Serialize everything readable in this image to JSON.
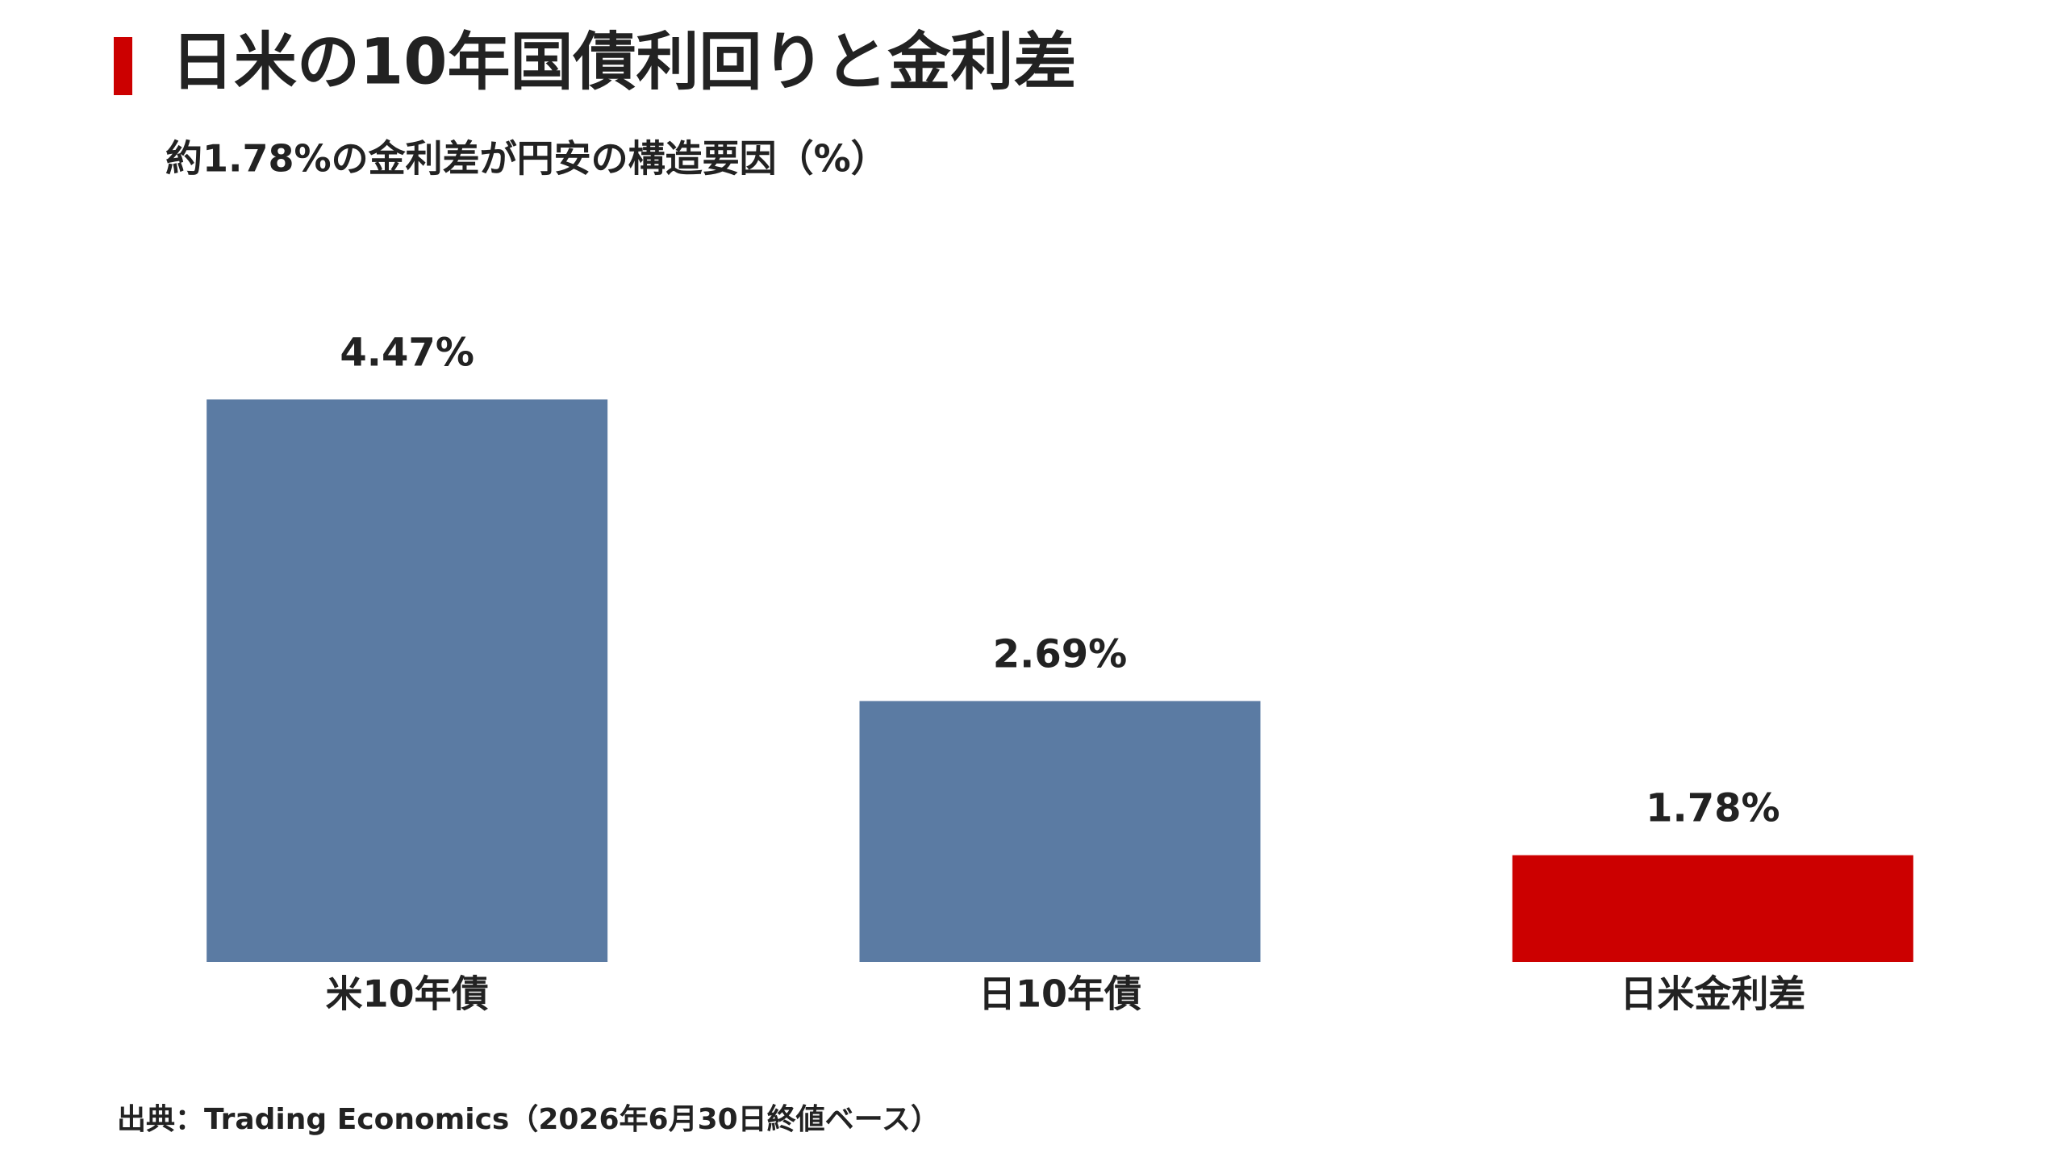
{
  "chart_data": {
    "type": "bar",
    "title": "日米の10年国債利回りと金利差",
    "subtitle": "約1.78%の金利差が円安の構造要因（%）",
    "source": "出典：Trading Economics（2026年6月30日終値ベース）",
    "categories": [
      "米10年債",
      "日10年債",
      "日米金利差"
    ],
    "values": [
      4.47,
      2.69,
      1.78
    ],
    "value_labels": [
      "4.47%",
      "2.69%",
      "1.78%"
    ],
    "colors": [
      "#5b7ba3",
      "#5b7ba3",
      "#cc0000"
    ],
    "value_label_colors": [
      "#222222",
      "#222222",
      "#cc0000"
    ],
    "accent_color": "#cc0000",
    "ylim": [
      1.15,
      5.4
    ],
    "grid": false
  }
}
